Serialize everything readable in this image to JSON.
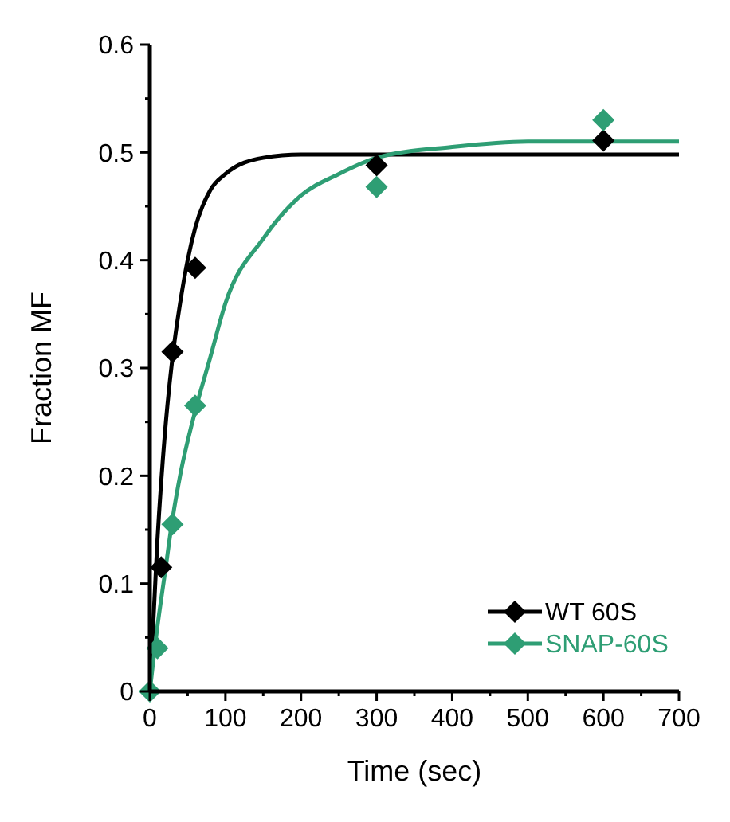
{
  "chart_data": {
    "type": "scatter",
    "xlabel": "Time (sec)",
    "ylabel": "Fraction MF",
    "xlim": [
      0,
      700
    ],
    "ylim": [
      0,
      0.6
    ],
    "xticks": [
      0,
      {
        "value": 50,
        "label": null
      },
      100,
      {
        "value": 150,
        "label": null
      },
      200,
      {
        "value": 250,
        "label": null
      },
      300,
      {
        "value": 350,
        "label": null
      },
      400,
      {
        "value": 450,
        "label": null
      },
      500,
      {
        "value": 550,
        "label": null
      },
      600,
      {
        "value": 650,
        "label": null
      },
      700
    ],
    "yticks": [
      0,
      {
        "value": 0.05,
        "label": null
      },
      0.1,
      {
        "value": 0.15,
        "label": null
      },
      0.2,
      {
        "value": 0.25,
        "label": null
      },
      0.3,
      {
        "value": 0.35,
        "label": null
      },
      0.4,
      {
        "value": 0.45,
        "label": null
      },
      0.5,
      {
        "value": 0.55,
        "label": null
      },
      0.6
    ],
    "grid": false,
    "legend": "bottom right",
    "marker": "diamond",
    "line_style": "solid",
    "series": [
      {
        "type": "line",
        "color": "#000000",
        "marker": "none",
        "x": [
          0,
          10,
          20,
          30,
          40,
          50,
          60,
          80,
          100,
          150,
          200,
          300,
          700
        ],
        "values": [
          0,
          0.14,
          0.24,
          0.31,
          0.36,
          0.4,
          0.43,
          0.465,
          0.48,
          0.495,
          0.498,
          0.498,
          0.498
        ]
      },
      {
        "type": "line",
        "color": "#2e9e74",
        "marker": "none",
        "x": [
          0,
          10,
          20,
          30,
          40,
          60,
          80,
          100,
          150,
          200,
          250,
          300,
          400,
          500,
          700
        ],
        "values": [
          0,
          0.06,
          0.11,
          0.16,
          0.2,
          0.26,
          0.31,
          0.36,
          0.42,
          0.46,
          0.48,
          0.495,
          0.505,
          0.51,
          0.51
        ]
      },
      {
        "name": "WT 60S",
        "color": "#000000",
        "x": [
          15,
          30,
          60,
          300,
          600
        ],
        "values": [
          0.115,
          0.315,
          0.393,
          0.488,
          0.511
        ]
      },
      {
        "name": "SNAP-60S",
        "color": "#2e9e74",
        "x": [
          0,
          10,
          30,
          60,
          300,
          600
        ],
        "values": [
          0,
          0.04,
          0.155,
          0.265,
          0.468,
          0.53
        ]
      }
    ]
  }
}
